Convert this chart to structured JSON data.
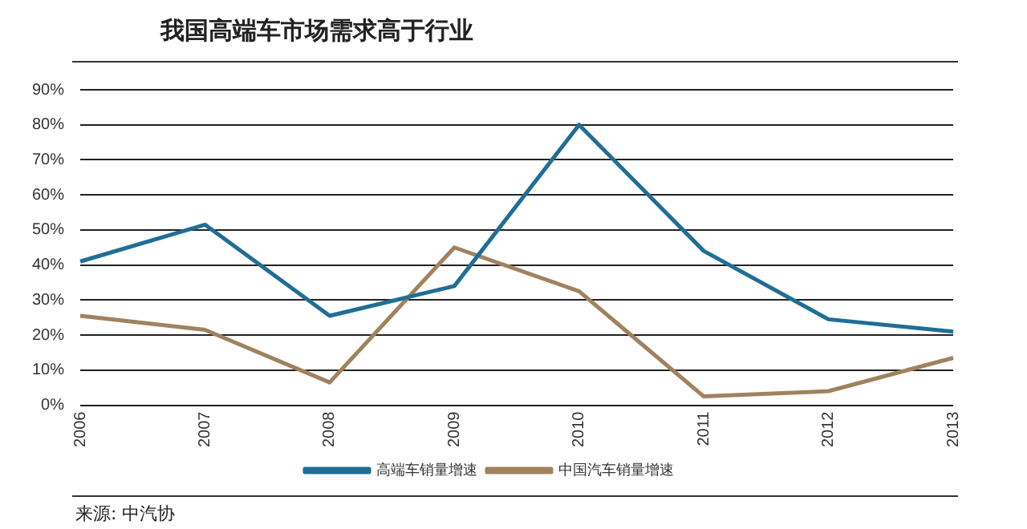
{
  "chart_data": {
    "type": "line",
    "title": "我国高端车市场需求高于行业",
    "categories": [
      "2006",
      "2007",
      "2008",
      "2009",
      "2010",
      "2011",
      "2012",
      "2013"
    ],
    "series": [
      {
        "name": "高端车销量增速",
        "color": "#1f6e96",
        "values": [
          41,
          51.5,
          25.5,
          34,
          80,
          44,
          24.5,
          21
        ]
      },
      {
        "name": "中国汽车销量增速",
        "color": "#a0825f",
        "values": [
          25.5,
          21.5,
          6.5,
          45,
          32.5,
          2.5,
          4,
          13.5
        ]
      }
    ],
    "ylim": [
      0,
      90
    ],
    "yticks": [
      {
        "value": 0,
        "label": "0%"
      },
      {
        "value": 10,
        "label": "10%"
      },
      {
        "value": 20,
        "label": "20%"
      },
      {
        "value": 30,
        "label": "30%"
      },
      {
        "value": 40,
        "label": "40%"
      },
      {
        "value": 50,
        "label": "50%"
      },
      {
        "value": 60,
        "label": "60%"
      },
      {
        "value": 70,
        "label": "70%"
      },
      {
        "value": 80,
        "label": "80%"
      },
      {
        "value": 90,
        "label": "90%"
      }
    ],
    "grid": "y",
    "legend": "bottom",
    "marker": "none",
    "line_style": "solid",
    "annotations": [
      "来源: 中汽协"
    ]
  }
}
